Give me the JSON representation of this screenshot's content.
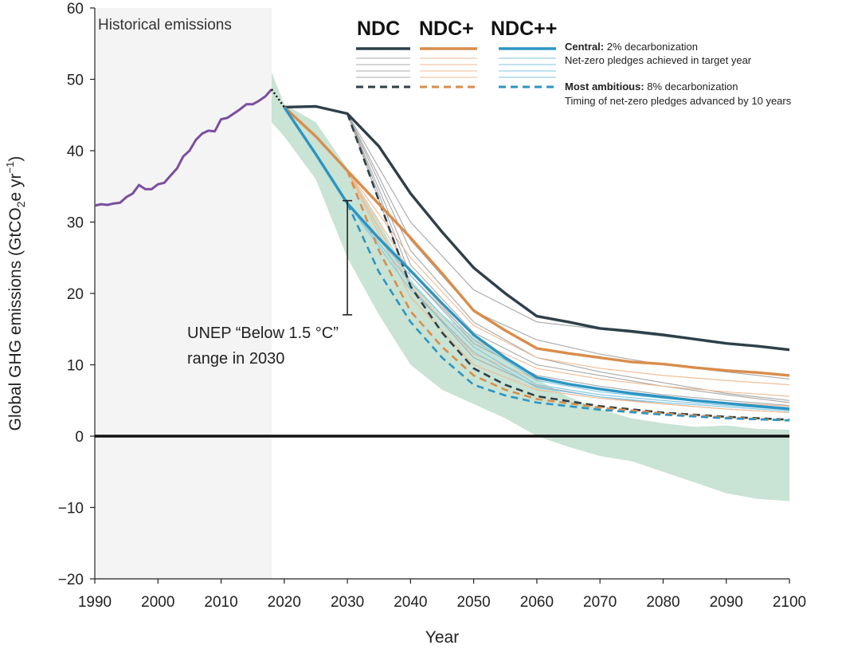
{
  "chart_data": {
    "type": "line",
    "xlabel": "Year",
    "ylabel": "Global GHG emissions (GtCO2e yr-1)",
    "ylabel_parts": {
      "main": "Global GHG emissions (GtCO",
      "sub": "2",
      "mid": "e yr",
      "sup": "−1",
      "end": ")"
    },
    "xlim": [
      1990,
      2100
    ],
    "ylim": [
      -20,
      60
    ],
    "x_ticks": [
      1990,
      2000,
      2010,
      2020,
      2030,
      2040,
      2050,
      2060,
      2070,
      2080,
      2090,
      2100
    ],
    "y_ticks": [
      -20,
      -10,
      0,
      10,
      20,
      30,
      40,
      50,
      60
    ],
    "y_tick_labels": [
      "−20",
      "−10",
      "0",
      "10",
      "20",
      "30",
      "40",
      "50",
      "60"
    ],
    "historical_label": "Historical emissions",
    "historical_shade": [
      1990,
      2018
    ],
    "unep_label_line1": "UNEP “Below 1.5 °C”",
    "unep_label_line2": "range in 2030",
    "unep_range_2030": [
      17,
      33
    ],
    "colors": {
      "historical": "#7b4f9e",
      "ndc": "#2e3f49",
      "ndc_plus": "#d98d4b",
      "ndc_plus_plus": "#2b95c3",
      "ndc_light": "#a8a8a8",
      "ndc_plus_light": "#f0b991",
      "ndc_plus_plus_light": "#7fc6e4",
      "band": "#c9e3d4",
      "shade": "#f4f4f5"
    },
    "legend": {
      "ndc": "NDC",
      "ndc_plus": "NDC+",
      "ndc_plus_plus": "NDC++",
      "central_bold": "Central:",
      "central_text": " 2% decarbonization",
      "central_line2": "Net-zero pledges achieved in target year",
      "ambitious_bold": "Most ambitious:",
      "ambitious_text": " 8% decarbonization",
      "ambitious_line2": "Timing of net-zero pledges advanced by 10 years"
    },
    "historical": {
      "name": "Historical emissions",
      "x": [
        1990,
        1991,
        1992,
        1993,
        1994,
        1995,
        1996,
        1997,
        1998,
        1999,
        2000,
        2001,
        2002,
        2003,
        2004,
        2005,
        2006,
        2007,
        2008,
        2009,
        2010,
        2011,
        2012,
        2013,
        2014,
        2015,
        2016,
        2017,
        2018
      ],
      "y": [
        32.3,
        32.5,
        32.4,
        32.6,
        32.7,
        33.5,
        34.0,
        35.2,
        34.6,
        34.6,
        35.3,
        35.5,
        36.5,
        37.5,
        39.2,
        40.0,
        41.5,
        42.4,
        42.8,
        42.7,
        44.4,
        44.6,
        45.2,
        45.8,
        46.5,
        46.5,
        47.0,
        47.6,
        48.6
      ]
    },
    "transition": {
      "x": [
        2018,
        2020
      ],
      "y": [
        48.6,
        46.1
      ]
    },
    "band": {
      "x": [
        2018,
        2020,
        2025,
        2030,
        2035,
        2040,
        2045,
        2050,
        2055,
        2060,
        2065,
        2070,
        2075,
        2080,
        2085,
        2090,
        2095,
        2100
      ],
      "upper": [
        51,
        46.5,
        44,
        37.5,
        30,
        22,
        17,
        14,
        11,
        8,
        5.5,
        3.8,
        2.5,
        1.8,
        1.3,
        1.5,
        1.0,
        0.9
      ],
      "lower": [
        44,
        42,
        36,
        25,
        17,
        10,
        6.5,
        4.5,
        2.5,
        0,
        -1.5,
        -2.8,
        -3.5,
        -5.0,
        -6.5,
        -8.0,
        -8.8,
        -9.1
      ]
    },
    "series": [
      {
        "name": "NDC",
        "variant": "central",
        "x": [
          2020,
          2025,
          2030,
          2035,
          2040,
          2045,
          2050,
          2055,
          2060,
          2065,
          2070,
          2075,
          2080,
          2085,
          2090,
          2095,
          2100
        ],
        "y": [
          46.1,
          46.2,
          45.2,
          40.6,
          34.0,
          28.6,
          23.6,
          20.0,
          16.8,
          16.0,
          15.1,
          14.7,
          14.2,
          13.6,
          13.0,
          12.6,
          12.1
        ]
      },
      {
        "name": "NDC",
        "variant": "ambitious",
        "x": [
          2030,
          2035,
          2040,
          2045,
          2050,
          2055,
          2060,
          2070,
          2080,
          2090,
          2100
        ],
        "y": [
          45.2,
          33.0,
          21.0,
          14.5,
          9.5,
          7.2,
          5.6,
          4.2,
          3.3,
          2.7,
          2.3
        ]
      },
      {
        "name": "NDC+",
        "variant": "central",
        "x": [
          2020,
          2025,
          2030,
          2035,
          2040,
          2045,
          2050,
          2055,
          2060,
          2065,
          2070,
          2075,
          2080,
          2085,
          2090,
          2095,
          2100
        ],
        "y": [
          46.1,
          42.0,
          37.2,
          32.5,
          27.8,
          22.8,
          17.6,
          14.8,
          12.3,
          11.6,
          11.0,
          10.4,
          10.1,
          9.6,
          9.2,
          8.9,
          8.5
        ]
      },
      {
        "name": "NDC+",
        "variant": "ambitious",
        "x": [
          2030,
          2035,
          2040,
          2045,
          2050,
          2055,
          2060,
          2070,
          2080,
          2090,
          2100
        ],
        "y": [
          37.2,
          26.0,
          17.5,
          12.5,
          8.5,
          6.5,
          5.2,
          4.0,
          3.2,
          2.6,
          2.2
        ]
      },
      {
        "name": "NDC++",
        "variant": "central",
        "x": [
          2020,
          2025,
          2030,
          2035,
          2040,
          2045,
          2050,
          2055,
          2060,
          2065,
          2070,
          2075,
          2080,
          2085,
          2090,
          2095,
          2100
        ],
        "y": [
          46.1,
          39.5,
          32.6,
          27.7,
          23.2,
          18.6,
          14.2,
          11.0,
          8.2,
          7.3,
          6.6,
          6.0,
          5.5,
          5.0,
          4.6,
          4.2,
          3.8
        ]
      },
      {
        "name": "NDC++",
        "variant": "ambitious",
        "x": [
          2030,
          2035,
          2040,
          2045,
          2050,
          2055,
          2060,
          2070,
          2080,
          2090,
          2100
        ],
        "y": [
          32.6,
          23.0,
          16.0,
          11.0,
          7.2,
          5.7,
          4.7,
          3.7,
          3.0,
          2.5,
          2.2
        ]
      }
    ],
    "sensitivity_lines": {
      "ndc": [
        {
          "x": [
            2030,
            2040,
            2050,
            2060,
            2070,
            2080,
            2090,
            2100
          ],
          "y": [
            45.2,
            30.0,
            20.5,
            16.0,
            15.0,
            14.0,
            13.0,
            12.0
          ]
        },
        {
          "x": [
            2030,
            2040,
            2050,
            2060,
            2070,
            2080,
            2090,
            2100
          ],
          "y": [
            45.2,
            27.5,
            17.5,
            13.5,
            11.5,
            10.0,
            9.0,
            8.0
          ]
        },
        {
          "x": [
            2030,
            2040,
            2050,
            2060,
            2070,
            2080,
            2090,
            2100
          ],
          "y": [
            45.2,
            26.0,
            16.0,
            11.0,
            9.0,
            7.5,
            6.0,
            5.0
          ]
        },
        {
          "x": [
            2030,
            2040,
            2050,
            2060,
            2070,
            2080,
            2090,
            2100
          ],
          "y": [
            45.2,
            24.0,
            14.5,
            10.0,
            8.5,
            7.0,
            5.8,
            4.7
          ]
        },
        {
          "x": [
            2030,
            2040,
            2050,
            2060,
            2070,
            2080,
            2090,
            2100
          ],
          "y": [
            45.2,
            22.5,
            13.0,
            8.5,
            7.0,
            5.8,
            5.0,
            4.3
          ]
        },
        {
          "x": [
            2030,
            2040,
            2050,
            2060,
            2070,
            2080,
            2090,
            2100
          ],
          "y": [
            45.2,
            21.0,
            11.0,
            7.0,
            5.5,
            4.5,
            3.8,
            3.3
          ]
        }
      ],
      "ndc_plus": [
        {
          "x": [
            2030,
            2040,
            2050,
            2060,
            2070,
            2080,
            2090,
            2100
          ],
          "y": [
            37.2,
            25.0,
            15.5,
            11.0,
            9.5,
            8.5,
            7.8,
            7.2
          ]
        },
        {
          "x": [
            2030,
            2040,
            2050,
            2060,
            2070,
            2080,
            2090,
            2100
          ],
          "y": [
            37.2,
            23.0,
            13.5,
            9.5,
            8.0,
            7.0,
            6.2,
            5.6
          ]
        },
        {
          "x": [
            2030,
            2040,
            2050,
            2060,
            2070,
            2080,
            2090,
            2100
          ],
          "y": [
            37.2,
            21.0,
            11.5,
            8.0,
            6.5,
            5.5,
            4.7,
            4.2
          ]
        },
        {
          "x": [
            2030,
            2040,
            2050,
            2060,
            2070,
            2080,
            2090,
            2100
          ],
          "y": [
            37.2,
            19.5,
            10.0,
            6.5,
            5.3,
            4.5,
            3.8,
            3.3
          ]
        }
      ],
      "ndc_plus_plus": [
        {
          "x": [
            2030,
            2040,
            2050,
            2060,
            2070,
            2080,
            2090,
            2100
          ],
          "y": [
            32.6,
            22.5,
            13.5,
            7.8,
            6.2,
            5.3,
            4.6,
            4.0
          ]
        },
        {
          "x": [
            2030,
            2040,
            2050,
            2060,
            2070,
            2080,
            2090,
            2100
          ],
          "y": [
            32.6,
            21.5,
            12.5,
            7.2,
            5.8,
            5.0,
            4.3,
            3.7
          ]
        },
        {
          "x": [
            2030,
            2040,
            2050,
            2060,
            2070,
            2080,
            2090,
            2100
          ],
          "y": [
            32.6,
            20.5,
            11.8,
            6.8,
            5.5,
            4.7,
            4.1,
            3.5
          ]
        }
      ]
    }
  }
}
